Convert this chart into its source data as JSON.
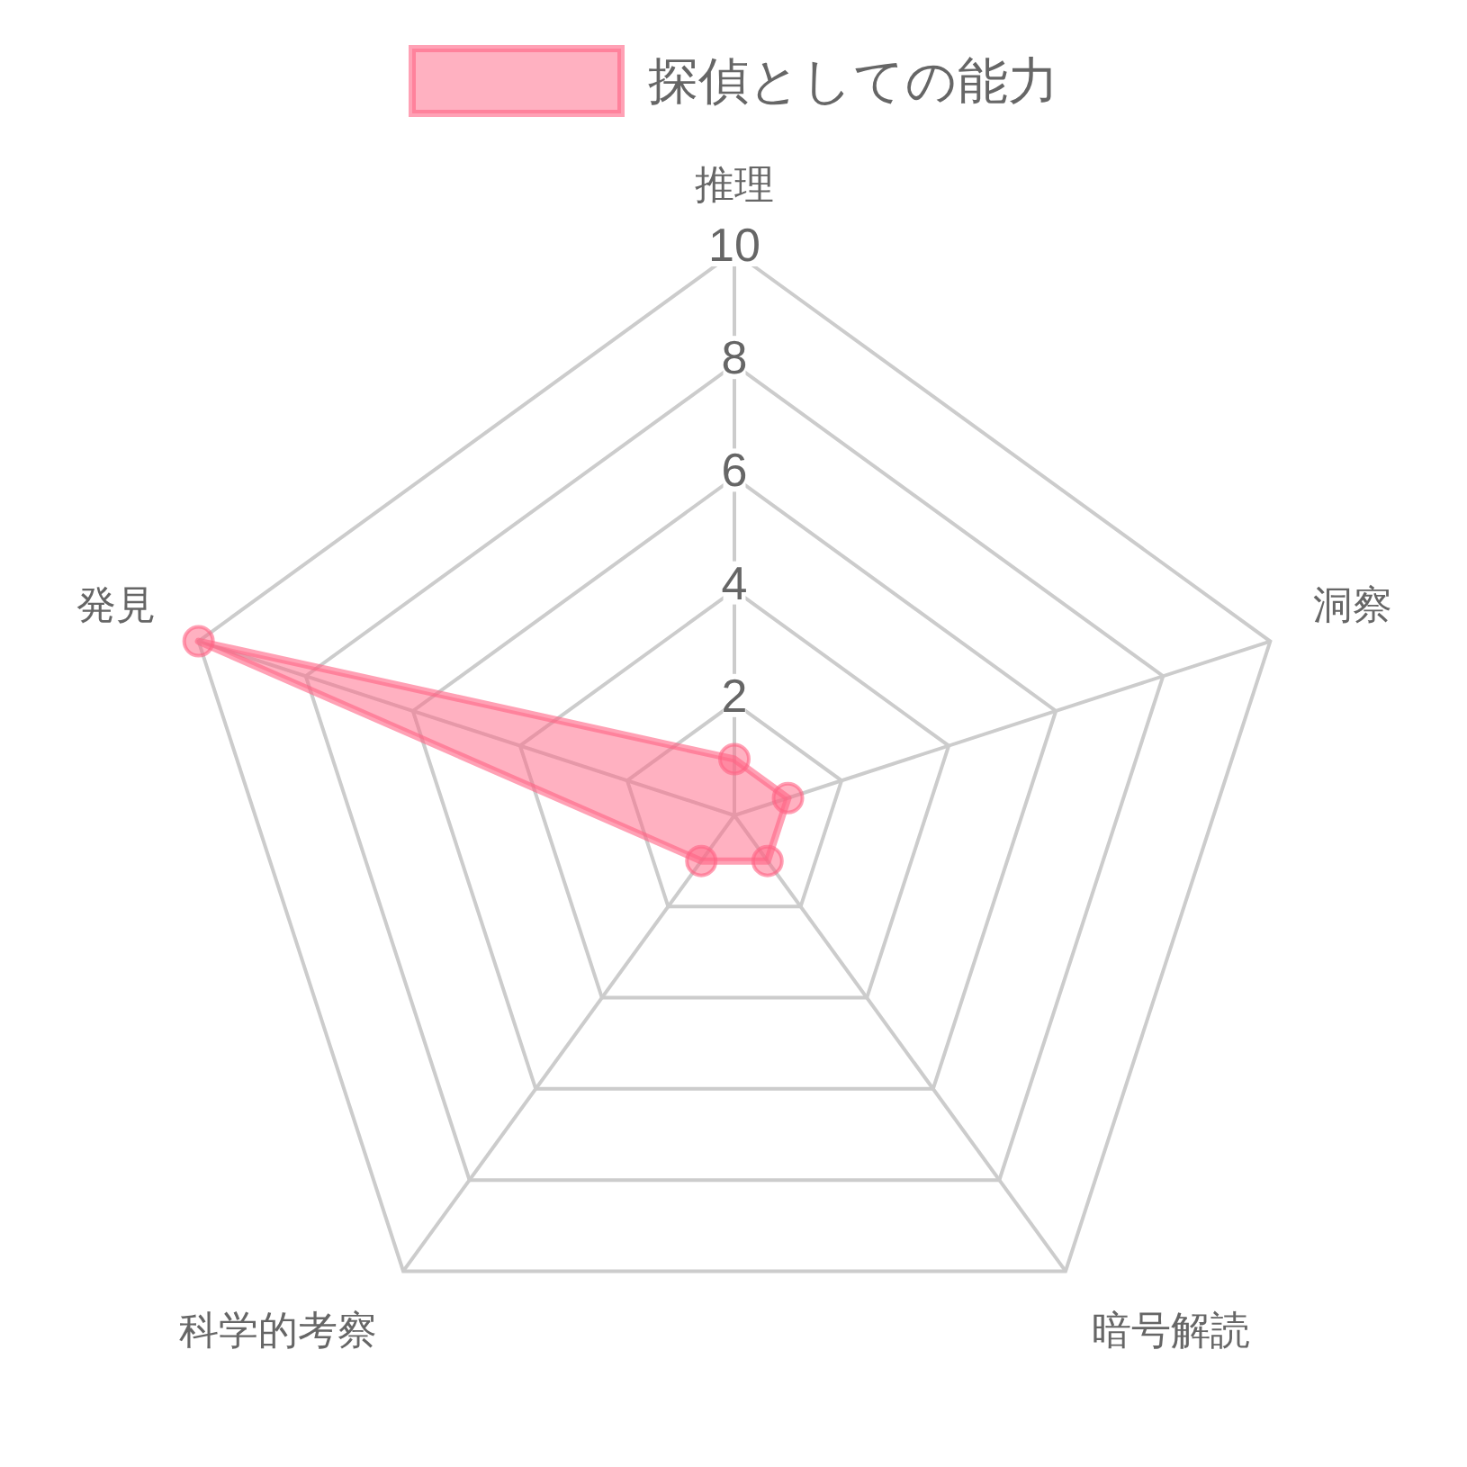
{
  "chart_data": {
    "type": "radar",
    "categories": [
      "推理",
      "洞察",
      "暗号解読",
      "科学的考察",
      "発見"
    ],
    "series": [
      {
        "name": "探偵としての能力",
        "color": "#ff6384",
        "values": [
          1,
          1,
          1,
          1,
          10
        ]
      }
    ],
    "ylim": [
      0,
      10
    ],
    "yticks": [
      2,
      4,
      6,
      8,
      10
    ],
    "grid": true,
    "legend": "top",
    "marker": "circle"
  }
}
